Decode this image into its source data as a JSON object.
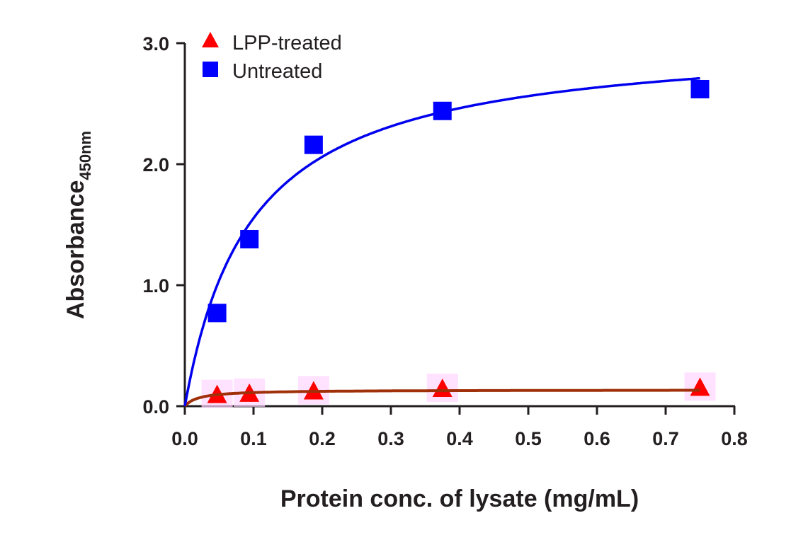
{
  "chart_data": {
    "type": "scatter",
    "title": "",
    "xlabel": "Protein conc. of lysate (mg/mL)",
    "ylabel": "Absorbance",
    "ylabel_subscript": "450nm",
    "xlim": [
      0,
      0.8
    ],
    "ylim": [
      0,
      3.0
    ],
    "xticks": [
      "0.0",
      "0.1",
      "0.2",
      "0.3",
      "0.4",
      "0.5",
      "0.6",
      "0.7",
      "0.8"
    ],
    "yticks": [
      "0.0",
      "1.0",
      "2.0",
      "3.0"
    ],
    "grid": false,
    "legend_position": "top-left",
    "series": [
      {
        "name": "LPP-treated",
        "marker": "triangle",
        "color": "#ff0000",
        "fit_color": "#a0300a",
        "x": [
          0.047,
          0.094,
          0.1875,
          0.375,
          0.75
        ],
        "y": [
          0.09,
          0.1,
          0.12,
          0.14,
          0.15
        ],
        "fit": {
          "model": "hyperbola",
          "bmax": 0.135,
          "kd": 0.02
        }
      },
      {
        "name": "Untreated",
        "marker": "square",
        "color": "#0000ff",
        "fit_color": "#0000ee",
        "x": [
          0.047,
          0.094,
          0.1875,
          0.375,
          0.75
        ],
        "y": [
          0.77,
          1.38,
          2.16,
          2.44,
          2.62
        ],
        "fit": {
          "model": "hyperbola",
          "bmax": 3.06,
          "kd": 0.097
        }
      }
    ]
  }
}
